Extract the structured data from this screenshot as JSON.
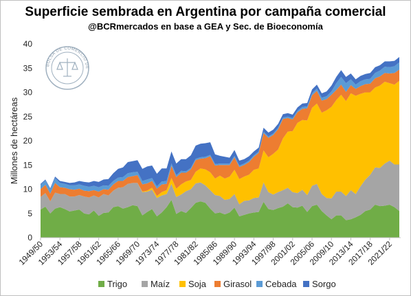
{
  "title": "Superficie sembrada en Argentina por campaña comercial",
  "subtitle": "@BCRmercados en base a GEA y Sec. de Bioeconomía",
  "seal": {
    "text": "BOLSA DE COMERCIO DE ROSARIO"
  },
  "colors": {
    "Trigo": "#70ad47",
    "Maíz": "#a5a5a5",
    "Soja": "#ffc000",
    "Girasol": "#ed7d31",
    "Cebada": "#5b9bd5",
    "Sorgo": "#4472c4"
  },
  "chart_data": {
    "type": "area",
    "stacked": true,
    "title": "Superficie sembrada en Argentina por campaña comercial",
    "subtitle": "@BCRmercados en base a GEA y Sec. de Bioeconomía",
    "ylabel": "Millones de hectáreas",
    "xlabel": "",
    "ylim": [
      0,
      40
    ],
    "yticks": [
      0,
      5,
      10,
      15,
      20,
      25,
      30,
      35,
      40
    ],
    "grid": false,
    "legend": "bottom",
    "x_tick_labels": [
      "1949/50",
      "1953/54",
      "1957/58",
      "1961/62",
      "1965/66",
      "1969/70",
      "1973/74",
      "1977/78",
      "1981/82",
      "1985/86",
      "1989/90",
      "1993/94",
      "1997/98",
      "2001/02",
      "2005/06",
      "2009/10",
      "2013/14",
      "2017/18",
      "2021/22"
    ],
    "x_start_label": "1949/50",
    "points_per_year": 1,
    "series": [
      {
        "name": "Trigo",
        "values": [
          5.8,
          6.4,
          5.0,
          6.0,
          6.3,
          5.9,
          5.4,
          5.6,
          5.8,
          5.0,
          4.8,
          5.6,
          4.5,
          5.1,
          5.2,
          6.3,
          6.5,
          6.0,
          6.3,
          6.7,
          6.5,
          4.6,
          5.3,
          5.9,
          4.4,
          5.2,
          6.3,
          7.8,
          4.9,
          5.5,
          5.1,
          6.1,
          7.2,
          7.5,
          7.2,
          6.0,
          5.0,
          5.2,
          4.8,
          5.2,
          6.2,
          4.4,
          4.7,
          5.0,
          5.2,
          5.3,
          7.4,
          5.9,
          5.7,
          6.1,
          6.4,
          7.1,
          6.3,
          6.2,
          6.6,
          5.3,
          6.5,
          6.8,
          5.5,
          4.6,
          3.8,
          4.6,
          4.6,
          3.6,
          3.8,
          4.2,
          4.7,
          5.5,
          5.8,
          6.8,
          6.5,
          6.6,
          6.8,
          6.3,
          5.5
        ]
      },
      {
        "name": "Maíz",
        "values": [
          2.6,
          2.8,
          2.5,
          3.3,
          2.7,
          3.1,
          3.1,
          2.9,
          3.0,
          3.5,
          3.5,
          3.1,
          3.8,
          3.9,
          3.5,
          3.4,
          3.8,
          4.4,
          4.8,
          4.6,
          4.8,
          4.8,
          4.2,
          4.0,
          3.8,
          3.5,
          2.7,
          3.3,
          3.5,
          3.4,
          4.5,
          3.9,
          4.0,
          3.9,
          3.6,
          3.8,
          3.8,
          3.4,
          3.0,
          2.8,
          2.8,
          2.5,
          2.9,
          2.7,
          3.0,
          3.0,
          4.0,
          3.5,
          3.2,
          3.3,
          3.4,
          3.2,
          3.1,
          3.0,
          3.3,
          3.5,
          4.2,
          4.3,
          3.5,
          3.6,
          4.3,
          4.9,
          4.9,
          5.0,
          6.0,
          4.8,
          5.9,
          6.5,
          7.2,
          7.7,
          7.9,
          8.7,
          9.1,
          8.8,
          9.6
        ]
      },
      {
        "name": "Soja",
        "values": [
          0,
          0,
          0,
          0,
          0,
          0,
          0,
          0,
          0,
          0,
          0,
          0,
          0,
          0,
          0,
          0,
          0,
          0,
          0,
          0,
          0,
          0.1,
          0.2,
          0.4,
          0.4,
          0.7,
          0.8,
          1.2,
          1.7,
          2.1,
          2.0,
          1.9,
          2.4,
          2.9,
          3.3,
          3.7,
          3.4,
          4.2,
          4.4,
          4.6,
          5.0,
          5.2,
          5.0,
          5.3,
          5.8,
          6.0,
          6.6,
          7.2,
          8.4,
          8.8,
          10.7,
          11.6,
          12.6,
          14.5,
          14.4,
          15.4,
          16.1,
          16.6,
          16.8,
          18.1,
          18.9,
          18.9,
          20.0,
          19.6,
          20.0,
          20.3,
          19.1,
          18.0,
          17.0,
          16.5,
          17.0,
          16.9,
          16.0,
          16.5,
          17.3
        ]
      },
      {
        "name": "Girasol",
        "values": [
          1.6,
          1.7,
          1.6,
          2.0,
          1.4,
          1.3,
          1.5,
          1.4,
          1.3,
          1.2,
          1.3,
          1.1,
          1.2,
          1.0,
          1.2,
          1.3,
          1.4,
          1.3,
          1.4,
          1.4,
          1.6,
          1.5,
          1.5,
          1.4,
          1.5,
          1.6,
          1.3,
          2.5,
          2.4,
          2.4,
          1.8,
          2.2,
          2.4,
          2.0,
          2.3,
          3.3,
          2.7,
          2.2,
          2.8,
          2.4,
          2.6,
          2.5,
          2.4,
          2.6,
          2.7,
          3.2,
          3.6,
          4.0,
          3.9,
          4.2,
          4.0,
          2.8,
          2.4,
          2.2,
          2.3,
          2.5,
          2.6,
          2.6,
          2.5,
          2.3,
          2.5,
          2.1,
          2.1,
          1.9,
          1.7,
          1.4,
          1.6,
          1.7,
          1.8,
          1.9,
          1.9,
          1.8,
          2.0,
          2.4,
          2.3
        ]
      },
      {
        "name": "Cebada",
        "values": [
          0.9,
          0.9,
          0.9,
          1.0,
          0.9,
          0.8,
          0.8,
          0.9,
          0.9,
          1.0,
          0.9,
          0.9,
          0.9,
          0.8,
          0.8,
          0.7,
          0.7,
          0.8,
          0.8,
          0.8,
          0.7,
          0.7,
          0.8,
          0.6,
          0.5,
          0.6,
          0.6,
          0.5,
          0.4,
          0.4,
          0.3,
          0.3,
          0.3,
          0.3,
          0.3,
          0.3,
          0.3,
          0.3,
          0.3,
          0.3,
          0.3,
          0.3,
          0.3,
          0.3,
          0.3,
          0.3,
          0.3,
          0.3,
          0.3,
          0.3,
          0.3,
          0.3,
          0.3,
          0.3,
          0.4,
          0.4,
          0.4,
          0.5,
          0.6,
          0.6,
          0.7,
          1.4,
          1.6,
          1.8,
          1.2,
          0.9,
          1.0,
          1.0,
          1.0,
          1.1,
          1.2,
          1.3,
          1.3,
          1.4,
          1.5
        ]
      },
      {
        "name": "Sorgo",
        "values": [
          0.2,
          0.2,
          0.2,
          0.3,
          0.4,
          0.4,
          0.5,
          0.6,
          0.7,
          0.8,
          0.9,
          1.0,
          1.1,
          1.2,
          1.4,
          1.6,
          1.8,
          2.0,
          2.3,
          2.3,
          2.4,
          2.5,
          2.7,
          2.6,
          2.6,
          2.7,
          2.6,
          2.5,
          2.4,
          2.4,
          2.5,
          2.6,
          2.7,
          2.8,
          2.8,
          2.6,
          2.0,
          1.6,
          1.4,
          1.2,
          1.2,
          1.0,
          0.9,
          0.9,
          0.8,
          0.8,
          0.8,
          0.8,
          0.8,
          0.8,
          0.7,
          0.7,
          0.7,
          0.7,
          0.7,
          0.7,
          0.8,
          0.8,
          0.9,
          1.0,
          1.2,
          1.3,
          1.4,
          1.3,
          1.2,
          1.1,
          1.1,
          1.1,
          1.2,
          1.2,
          1.1,
          1.1,
          1.2,
          1.1,
          1.1
        ]
      }
    ]
  }
}
